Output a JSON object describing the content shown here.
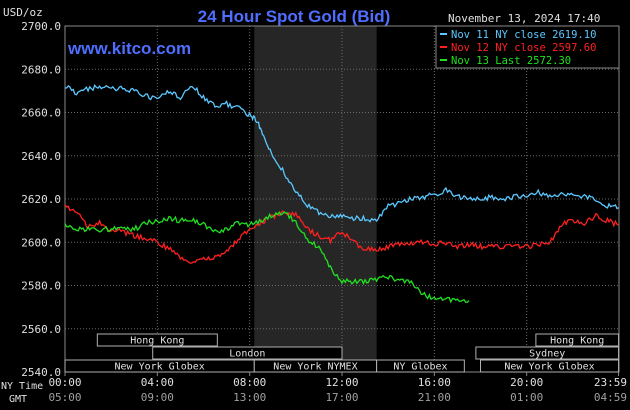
{
  "chart_data": {
    "type": "line",
    "title": "24 Hour Spot Gold (Bid)",
    "watermark": "www.kitco.com",
    "timestamp": "November 13, 2024 17:40",
    "ylabel": "USD/oz",
    "ylim": [
      2540,
      2700
    ],
    "yticks": [
      "2700.0",
      "2680.0",
      "2660.0",
      "2640.0",
      "2620.0",
      "2600.0",
      "2580.0",
      "2560.0",
      "2540.0"
    ],
    "xlim": [
      0,
      24
    ],
    "xticks": [
      {
        "ny": "00:00",
        "gmt": "05:00"
      },
      {
        "ny": "04:00",
        "gmt": "09:00"
      },
      {
        "ny": "08:00",
        "gmt": "13:00"
      },
      {
        "ny": "12:00",
        "gmt": "17:00"
      },
      {
        "ny": "16:00",
        "gmt": "21:00"
      },
      {
        "ny": "20:00",
        "gmt": "01:00"
      },
      {
        "ny": "23:59",
        "gmt": "04:59"
      }
    ],
    "x_row_labels": {
      "ny": "NY Time",
      "gmt": "GMT"
    },
    "grid": true,
    "legend_position": "top-right",
    "shaded_session": {
      "start": 8.2,
      "end": 13.5
    },
    "series": [
      {
        "name": "Nov 11 NY close 2619.10",
        "color": "#5bc8ff",
        "x": [
          0,
          0.5,
          1,
          1.5,
          2,
          2.5,
          3,
          3.5,
          4,
          4.5,
          5,
          5.5,
          6,
          6.5,
          7,
          7.5,
          8,
          8.3,
          8.6,
          9,
          9.5,
          10,
          10.5,
          11,
          11.5,
          12,
          12.5,
          13,
          13.5,
          14,
          14.5,
          15,
          15.5,
          16,
          16.5,
          17,
          17.5,
          18,
          18.5,
          19,
          19.5,
          20,
          20.5,
          21,
          21.5,
          22,
          22.5,
          23,
          23.5,
          23.98
        ],
        "y": [
          2672,
          2669,
          2671,
          2672,
          2671,
          2671,
          2670,
          2668,
          2666,
          2670,
          2667,
          2673,
          2667,
          2663,
          2664,
          2662,
          2659,
          2656,
          2650,
          2640,
          2632,
          2624,
          2617,
          2614,
          2612,
          2612,
          2611,
          2611,
          2610,
          2617,
          2618,
          2620,
          2621,
          2622,
          2624,
          2621,
          2620,
          2620,
          2621,
          2620,
          2621,
          2621,
          2623,
          2621,
          2622,
          2623,
          2621,
          2620,
          2617,
          2616
        ]
      },
      {
        "name": "Nov 12 NY close 2597.60",
        "color": "#ff2020",
        "x": [
          0,
          0.5,
          1,
          1.5,
          2,
          2.5,
          3,
          3.5,
          4,
          4.5,
          5,
          5.5,
          6,
          6.5,
          7,
          7.5,
          8,
          8.5,
          9,
          9.5,
          10,
          10.5,
          11,
          11.5,
          12,
          12.5,
          13,
          13.5,
          14,
          14.5,
          15,
          15.5,
          16,
          16.5,
          17,
          17.5,
          18,
          18.5,
          19,
          19.5,
          20,
          20.5,
          21,
          21.5,
          22,
          22.5,
          23,
          23.5,
          23.98
        ],
        "y": [
          2617,
          2614,
          2607,
          2609,
          2606,
          2605,
          2603,
          2602,
          2600,
          2597,
          2593,
          2591,
          2592,
          2593,
          2596,
          2601,
          2606,
          2609,
          2612,
          2614,
          2613,
          2606,
          2603,
          2601,
          2605,
          2600,
          2597,
          2596,
          2598,
          2599,
          2599,
          2600,
          2599,
          2600,
          2598,
          2599,
          2598,
          2598,
          2598,
          2598,
          2598,
          2599,
          2600,
          2608,
          2610,
          2609,
          2612,
          2610,
          2608
        ]
      },
      {
        "name": "Nov 13 Last 2572.30",
        "color": "#20e020",
        "x": [
          0,
          0.5,
          1,
          1.5,
          2,
          2.5,
          3,
          3.5,
          4,
          4.5,
          5,
          5.5,
          6,
          6.5,
          7,
          7.5,
          8,
          8.5,
          9,
          9.5,
          10,
          10.5,
          11,
          11.5,
          12,
          12.5,
          13,
          13.5,
          14,
          14.5,
          15,
          15.5,
          16,
          16.5,
          17,
          17.5
        ],
        "y": [
          2608,
          2606,
          2606,
          2606,
          2606,
          2606,
          2606,
          2609,
          2610,
          2611,
          2610,
          2610,
          2608,
          2605,
          2606,
          2609,
          2608,
          2610,
          2613,
          2614,
          2609,
          2601,
          2598,
          2588,
          2582,
          2582,
          2582,
          2583,
          2584,
          2582,
          2582,
          2576,
          2574,
          2574,
          2573,
          2573
        ]
      }
    ],
    "sessions": [
      {
        "name": "Hong Kong",
        "start": 1.4,
        "end": 6.6,
        "row": 0
      },
      {
        "name": "Hong Kong",
        "start": 20.4,
        "end": 23.98,
        "row": 0
      },
      {
        "name": "London",
        "start": 3.8,
        "end": 12.0,
        "row": 1
      },
      {
        "name": "Sydney",
        "start": 17.8,
        "end": 23.98,
        "row": 1
      },
      {
        "name": "New York Globex",
        "start": 0,
        "end": 8.2,
        "row": 2
      },
      {
        "name": "New York NYMEX",
        "start": 8.2,
        "end": 13.5,
        "row": 2
      },
      {
        "name": "New York Globex",
        "start": 18.0,
        "end": 23.98,
        "row": 2
      },
      {
        "name": "NY Globex",
        "start": 13.5,
        "end": 17.3,
        "row": 2
      }
    ]
  }
}
